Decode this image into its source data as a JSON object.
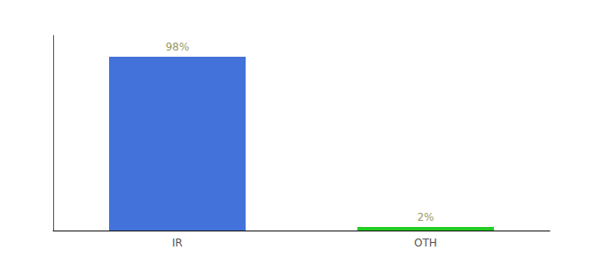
{
  "chart_data": {
    "type": "bar",
    "categories": [
      "IR",
      "OTH"
    ],
    "values": [
      98,
      2
    ],
    "value_labels": [
      "98%",
      "2%"
    ],
    "colors": [
      "#4472db",
      "#22cc22"
    ],
    "ylim": [
      0,
      110
    ],
    "grid": false,
    "data_labels": true,
    "tick_labels": "x"
  }
}
